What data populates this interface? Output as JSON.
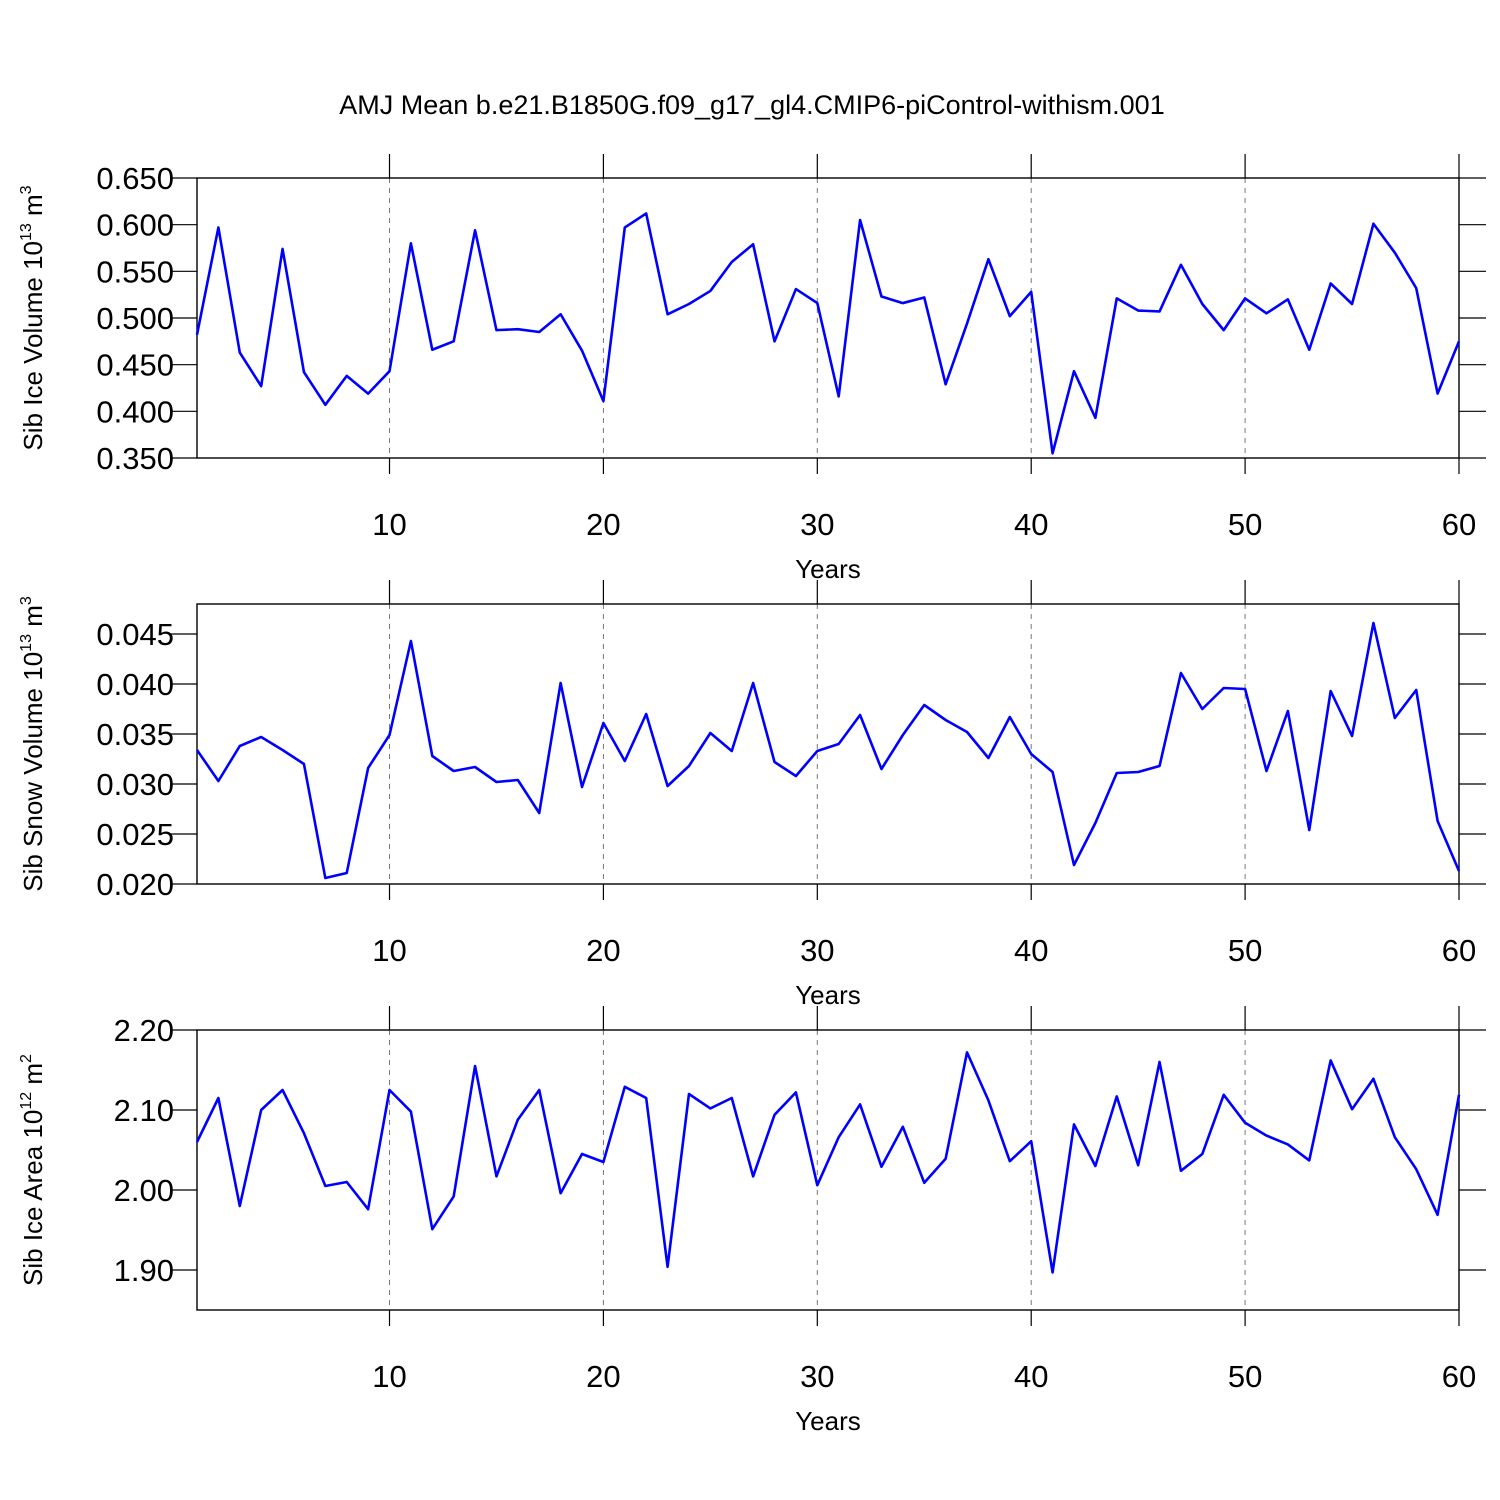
{
  "title": "AMJ Mean b.e21.B1850G.f09_g17_gl4.CMIP6-piControl-withism.001",
  "chart_data": [
    {
      "type": "line",
      "ylabel": [
        "Sib Ice Volume 10",
        "13",
        " m",
        "3"
      ],
      "xlabel": "Years",
      "x": [
        1,
        2,
        3,
        4,
        5,
        6,
        7,
        8,
        9,
        10,
        11,
        12,
        13,
        14,
        15,
        16,
        17,
        18,
        19,
        20,
        21,
        22,
        23,
        24,
        25,
        26,
        27,
        28,
        29,
        30,
        31,
        32,
        33,
        34,
        35,
        36,
        37,
        38,
        39,
        40,
        41,
        42,
        43,
        44,
        45,
        46,
        47,
        48,
        49,
        50,
        51,
        52,
        53,
        54,
        55,
        56,
        57,
        58,
        59,
        60
      ],
      "values": [
        0.482,
        0.597,
        0.463,
        0.427,
        0.574,
        0.442,
        0.407,
        0.438,
        0.419,
        0.443,
        0.58,
        0.466,
        0.475,
        0.594,
        0.487,
        0.488,
        0.485,
        0.504,
        0.465,
        0.411,
        0.597,
        0.612,
        0.504,
        0.515,
        0.529,
        0.56,
        0.579,
        0.475,
        0.531,
        0.516,
        0.416,
        0.605,
        0.523,
        0.516,
        0.522,
        0.429,
        0.494,
        0.563,
        0.502,
        0.528,
        0.355,
        0.443,
        0.393,
        0.521,
        0.508,
        0.507,
        0.557,
        0.515,
        0.487,
        0.521,
        0.505,
        0.52,
        0.466,
        0.537,
        0.515,
        0.601,
        0.57,
        0.532,
        0.419,
        0.475
      ],
      "color": "#0000ff",
      "xlim": [
        1,
        60
      ],
      "ylim": [
        0.35,
        0.65
      ],
      "xticks": [
        10,
        20,
        30,
        40,
        50,
        60
      ],
      "yticks": [
        {
          "value": 0.35,
          "label": "0.350"
        },
        {
          "value": 0.4,
          "label": "0.400"
        },
        {
          "value": 0.45,
          "label": "0.450"
        },
        {
          "value": 0.5,
          "label": "0.500"
        },
        {
          "value": 0.55,
          "label": "0.550"
        },
        {
          "value": 0.6,
          "label": "0.600"
        },
        {
          "value": 0.65,
          "label": "0.650"
        }
      ],
      "grid": true
    },
    {
      "type": "line",
      "ylabel": [
        "Sib Snow Volume 10",
        "13",
        " m",
        "3"
      ],
      "xlabel": "Years",
      "x": [
        1,
        2,
        3,
        4,
        5,
        6,
        7,
        8,
        9,
        10,
        11,
        12,
        13,
        14,
        15,
        16,
        17,
        18,
        19,
        20,
        21,
        22,
        23,
        24,
        25,
        26,
        27,
        28,
        29,
        30,
        31,
        32,
        33,
        34,
        35,
        36,
        37,
        38,
        39,
        40,
        41,
        42,
        43,
        44,
        45,
        46,
        47,
        48,
        49,
        50,
        51,
        52,
        53,
        54,
        55,
        56,
        57,
        58,
        59,
        60
      ],
      "values": [
        0.0334,
        0.0303,
        0.0338,
        0.0347,
        0.0334,
        0.032,
        0.0206,
        0.0211,
        0.0316,
        0.0349,
        0.0443,
        0.0328,
        0.0313,
        0.0317,
        0.0302,
        0.0304,
        0.0271,
        0.0401,
        0.0297,
        0.0361,
        0.0323,
        0.037,
        0.0298,
        0.0318,
        0.0351,
        0.0333,
        0.0401,
        0.0322,
        0.0308,
        0.0333,
        0.034,
        0.0369,
        0.0315,
        0.0349,
        0.0379,
        0.0364,
        0.0352,
        0.0326,
        0.0367,
        0.033,
        0.0312,
        0.0219,
        0.0261,
        0.0311,
        0.0312,
        0.0318,
        0.0411,
        0.0375,
        0.0396,
        0.0395,
        0.0313,
        0.0373,
        0.0254,
        0.0393,
        0.0348,
        0.0461,
        0.0366,
        0.0394,
        0.0263,
        0.0213
      ],
      "color": "#0000ff",
      "xlim": [
        1,
        60
      ],
      "ylim": [
        0.02,
        0.048
      ],
      "xticks": [
        10,
        20,
        30,
        40,
        50,
        60
      ],
      "yticks": [
        {
          "value": 0.02,
          "label": "0.020"
        },
        {
          "value": 0.025,
          "label": "0.025"
        },
        {
          "value": 0.03,
          "label": "0.030"
        },
        {
          "value": 0.035,
          "label": "0.035"
        },
        {
          "value": 0.04,
          "label": "0.040"
        },
        {
          "value": 0.045,
          "label": "0.045"
        }
      ],
      "grid": true
    },
    {
      "type": "line",
      "ylabel": [
        "Sib Ice Area 10",
        "12",
        " m",
        "2"
      ],
      "xlabel": "Years",
      "x": [
        1,
        2,
        3,
        4,
        5,
        6,
        7,
        8,
        9,
        10,
        11,
        12,
        13,
        14,
        15,
        16,
        17,
        18,
        19,
        20,
        21,
        22,
        23,
        24,
        25,
        26,
        27,
        28,
        29,
        30,
        31,
        32,
        33,
        34,
        35,
        36,
        37,
        38,
        39,
        40,
        41,
        42,
        43,
        44,
        45,
        46,
        47,
        48,
        49,
        50,
        51,
        52,
        53,
        54,
        55,
        56,
        57,
        58,
        59,
        60
      ],
      "values": [
        2.06,
        2.115,
        1.98,
        2.1,
        2.125,
        2.071,
        2.005,
        2.01,
        1.976,
        2.125,
        2.098,
        1.951,
        1.992,
        2.155,
        2.017,
        2.088,
        2.125,
        1.996,
        2.045,
        2.035,
        2.129,
        2.115,
        1.904,
        2.12,
        2.102,
        2.115,
        2.017,
        2.094,
        2.122,
        2.006,
        2.066,
        2.107,
        2.029,
        2.079,
        2.009,
        2.039,
        2.172,
        2.112,
        2.036,
        2.061,
        1.897,
        2.082,
        2.03,
        2.117,
        2.031,
        2.16,
        2.024,
        2.045,
        2.119,
        2.084,
        2.068,
        2.057,
        2.037,
        2.162,
        2.101,
        2.139,
        2.066,
        2.026,
        1.969,
        2.119
      ],
      "color": "#0000ff",
      "xlim": [
        1,
        60
      ],
      "ylim": [
        1.85,
        2.2
      ],
      "xticks": [
        10,
        20,
        30,
        40,
        50,
        60
      ],
      "yticks": [
        {
          "value": 1.9,
          "label": "1.90"
        },
        {
          "value": 2.0,
          "label": "2.00"
        },
        {
          "value": 2.1,
          "label": "2.10"
        },
        {
          "value": 2.2,
          "label": "2.20"
        }
      ],
      "grid": true
    }
  ]
}
